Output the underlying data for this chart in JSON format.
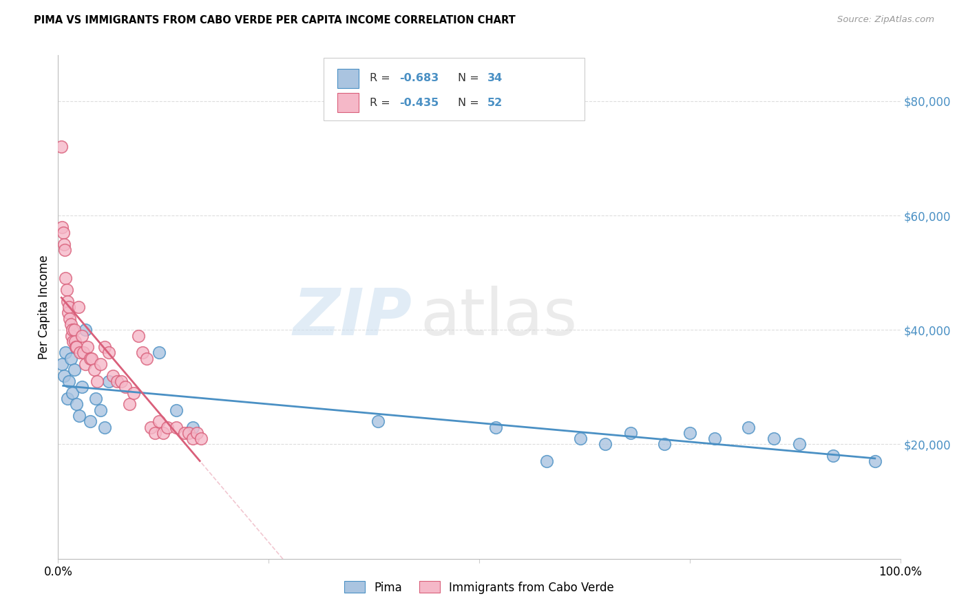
{
  "title": "PIMA VS IMMIGRANTS FROM CABO VERDE PER CAPITA INCOME CORRELATION CHART",
  "source": "Source: ZipAtlas.com",
  "ylabel": "Per Capita Income",
  "watermark_zip": "ZIP",
  "watermark_atlas": "atlas",
  "legend_pima_R": "-0.683",
  "legend_pima_N": "34",
  "legend_cabo_R": "-0.435",
  "legend_cabo_N": "52",
  "yticks": [
    0,
    20000,
    40000,
    60000,
    80000
  ],
  "ytick_labels": [
    "",
    "$20,000",
    "$40,000",
    "$60,000",
    "$80,000"
  ],
  "xlim": [
    0.0,
    1.0
  ],
  "ylim": [
    0,
    88000
  ],
  "blue_color": "#aac4e0",
  "pink_color": "#f5b8c8",
  "blue_line_color": "#4a90c4",
  "pink_line_color": "#d95f7a",
  "blue_edge_color": "#4a90c4",
  "pink_edge_color": "#d95f7a",
  "pima_x": [
    0.005,
    0.007,
    0.009,
    0.011,
    0.013,
    0.015,
    0.017,
    0.019,
    0.022,
    0.025,
    0.028,
    0.032,
    0.038,
    0.045,
    0.05,
    0.055,
    0.06,
    0.12,
    0.14,
    0.16,
    0.38,
    0.52,
    0.58,
    0.62,
    0.65,
    0.68,
    0.72,
    0.75,
    0.78,
    0.82,
    0.85,
    0.88,
    0.92,
    0.97
  ],
  "pima_y": [
    34000,
    32000,
    36000,
    28000,
    31000,
    35000,
    29000,
    33000,
    27000,
    25000,
    30000,
    40000,
    24000,
    28000,
    26000,
    23000,
    31000,
    36000,
    26000,
    23000,
    24000,
    23000,
    17000,
    21000,
    20000,
    22000,
    20000,
    22000,
    21000,
    23000,
    21000,
    20000,
    18000,
    17000
  ],
  "cabo_x": [
    0.004,
    0.005,
    0.006,
    0.007,
    0.008,
    0.009,
    0.01,
    0.011,
    0.012,
    0.013,
    0.014,
    0.015,
    0.016,
    0.017,
    0.018,
    0.019,
    0.02,
    0.021,
    0.022,
    0.024,
    0.026,
    0.028,
    0.03,
    0.032,
    0.035,
    0.038,
    0.04,
    0.043,
    0.046,
    0.05,
    0.055,
    0.06,
    0.065,
    0.07,
    0.075,
    0.08,
    0.085,
    0.09,
    0.095,
    0.1,
    0.105,
    0.11,
    0.115,
    0.12,
    0.125,
    0.13,
    0.14,
    0.15,
    0.155,
    0.16,
    0.165,
    0.17
  ],
  "cabo_y": [
    72000,
    58000,
    57000,
    55000,
    54000,
    49000,
    47000,
    45000,
    43000,
    44000,
    42000,
    41000,
    39000,
    40000,
    38000,
    40000,
    38000,
    37000,
    37000,
    44000,
    36000,
    39000,
    36000,
    34000,
    37000,
    35000,
    35000,
    33000,
    31000,
    34000,
    37000,
    36000,
    32000,
    31000,
    31000,
    30000,
    27000,
    29000,
    39000,
    36000,
    35000,
    23000,
    22000,
    24000,
    22000,
    23000,
    23000,
    22000,
    22000,
    21000,
    22000,
    21000
  ]
}
